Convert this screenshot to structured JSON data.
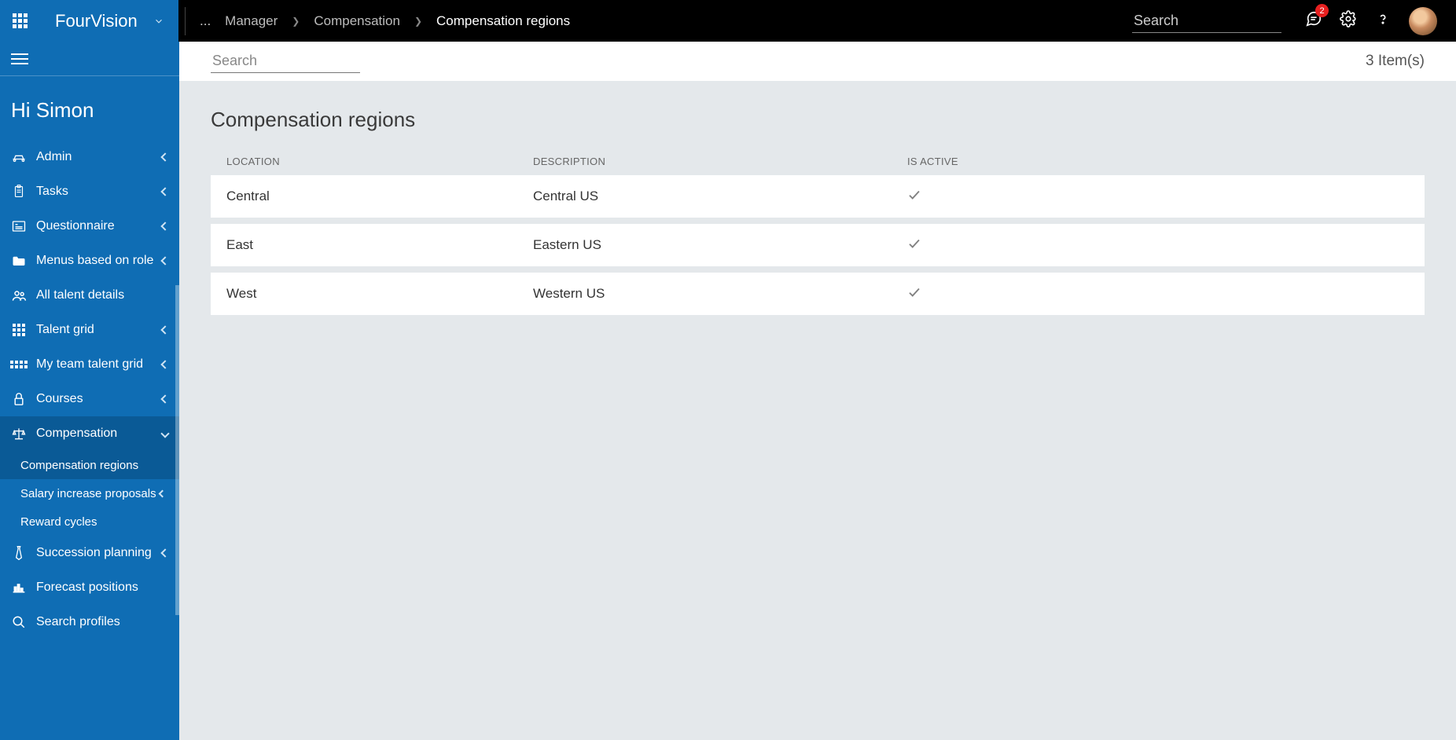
{
  "brand": "FourVision",
  "top_search_placeholder": "Search",
  "notification_count": "2",
  "breadcrumbs": {
    "ellipsis": "...",
    "items": [
      {
        "label": "Manager"
      },
      {
        "label": "Compensation"
      },
      {
        "label": "Compensation regions"
      }
    ]
  },
  "greeting": "Hi Simon",
  "sidebar": {
    "items": [
      {
        "label": "Admin",
        "icon": "car-icon",
        "has_children": true
      },
      {
        "label": "Tasks",
        "icon": "clipboard-icon",
        "has_children": true
      },
      {
        "label": "Questionnaire",
        "icon": "form-icon",
        "has_children": true
      },
      {
        "label": "Menus based on role",
        "icon": "folder-icon",
        "has_children": true
      },
      {
        "label": "All talent details",
        "icon": "people-icon",
        "has_children": false
      },
      {
        "label": "Talent grid",
        "icon": "grid-icon",
        "has_children": true
      },
      {
        "label": "My team talent grid",
        "icon": "grid-wide-icon",
        "has_children": true
      },
      {
        "label": "Courses",
        "icon": "padlock-icon",
        "has_children": true
      },
      {
        "label": "Compensation",
        "icon": "scale-icon",
        "has_children": true,
        "active": true,
        "expanded": true,
        "children": [
          {
            "label": "Compensation regions",
            "active": true
          },
          {
            "label": "Salary increase proposals",
            "has_children": true
          },
          {
            "label": "Reward cycles"
          }
        ]
      },
      {
        "label": "Succession planning",
        "icon": "tie-icon",
        "has_children": true
      },
      {
        "label": "Forecast positions",
        "icon": "chart-icon",
        "has_children": false
      },
      {
        "label": "Search profiles",
        "icon": "search-icon",
        "has_children": false
      }
    ]
  },
  "filter": {
    "search_placeholder": "Search",
    "count_label": "3 Item(s)"
  },
  "page": {
    "title": "Compensation regions",
    "columns": {
      "location": "LOCATION",
      "description": "DESCRIPTION",
      "isactive": "IS ACTIVE"
    },
    "rows": [
      {
        "location": "Central",
        "description": "Central US",
        "is_active": true
      },
      {
        "location": "East",
        "description": "Eastern US",
        "is_active": true
      },
      {
        "location": "West",
        "description": "Western US",
        "is_active": true
      }
    ]
  },
  "colors": {
    "topbar_bg": "#000000",
    "sidebar_bg": "#0f6db4",
    "sidebar_active": "#0a5a96",
    "main_bg": "#e4e8eb",
    "row_bg": "#ffffff",
    "badge_bg": "#e82020",
    "text_muted": "#666666",
    "check_stroke": "#808080"
  }
}
